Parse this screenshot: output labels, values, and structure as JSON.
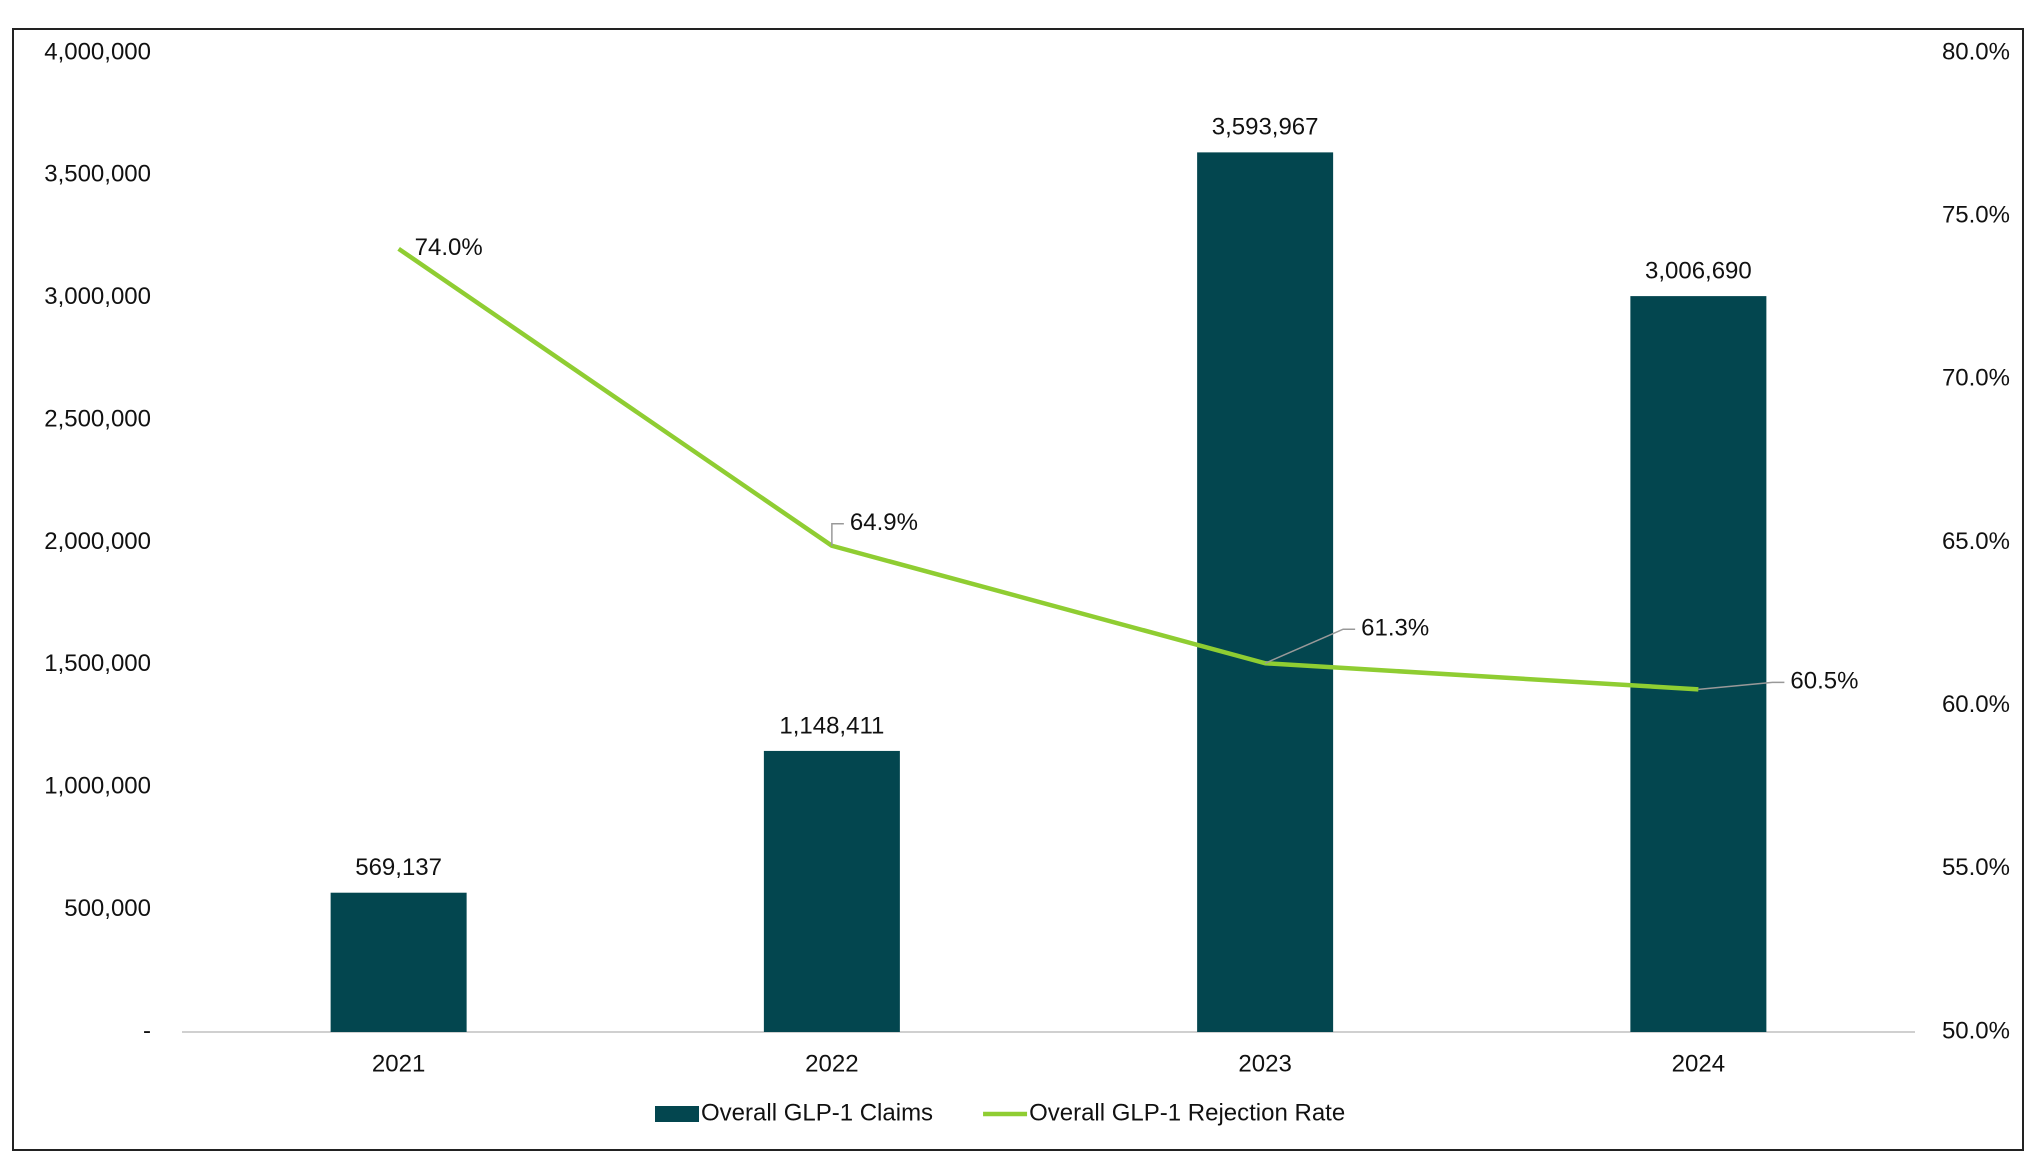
{
  "chart_data": {
    "type": "bar-line",
    "categories": [
      "2021",
      "2022",
      "2023",
      "2024"
    ],
    "series": [
      {
        "name": "Overall GLP-1 Claims",
        "type": "bar",
        "color": "#03464f",
        "values": [
          569137,
          1148411,
          3593967,
          3006690
        ],
        "value_labels": [
          "569,137",
          "1,148,411",
          "3,593,967",
          "3,006,690"
        ]
      },
      {
        "name": "Overall GLP-1 Rejection Rate",
        "type": "line",
        "axis": "y2",
        "color": "#8fcd32",
        "values": [
          74.0,
          64.9,
          61.3,
          60.5
        ],
        "value_labels": [
          "74.0%",
          "64.9%",
          "61.3%",
          "60.5%"
        ]
      }
    ],
    "ylim": [
      0,
      4000000
    ],
    "yticks": [
      {
        "value": 0,
        "label": "-"
      },
      {
        "value": 500000,
        "label": "500,000"
      },
      {
        "value": 1000000,
        "label": "1,000,000"
      },
      {
        "value": 1500000,
        "label": "1,500,000"
      },
      {
        "value": 2000000,
        "label": "2,000,000"
      },
      {
        "value": 2500000,
        "label": "2,500,000"
      },
      {
        "value": 3000000,
        "label": "3,000,000"
      },
      {
        "value": 3500000,
        "label": "3,500,000"
      },
      {
        "value": 4000000,
        "label": "4,000,000"
      }
    ],
    "y2lim": [
      50,
      80
    ],
    "y2ticks": [
      {
        "value": 50,
        "label": "50.0%"
      },
      {
        "value": 55,
        "label": "55.0%"
      },
      {
        "value": 60,
        "label": "60.0%"
      },
      {
        "value": 65,
        "label": "65.0%"
      },
      {
        "value": 70,
        "label": "70.0%"
      },
      {
        "value": 75,
        "label": "75.0%"
      },
      {
        "value": 80,
        "label": "80.0%"
      }
    ],
    "grid": false,
    "legend": "bottom"
  }
}
